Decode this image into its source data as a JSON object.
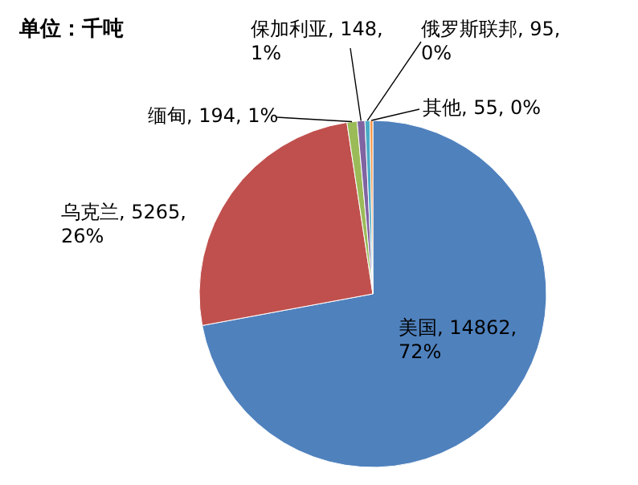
{
  "chart_data": {
    "type": "pie",
    "title": "单位：千吨",
    "categories": [
      "美国",
      "乌克兰",
      "缅甸",
      "保加利亚",
      "俄罗斯联邦",
      "其他"
    ],
    "values": [
      14862,
      5265,
      194,
      148,
      95,
      55
    ],
    "colors": [
      "#4f81bd",
      "#c0504d",
      "#9bbb59",
      "#8064a2",
      "#4bacc6",
      "#f79646"
    ],
    "value_labels": [
      "14862, 72%",
      "5265, 26%",
      "194, 1%",
      "148, 1%",
      "95, 0%",
      "55, 0%"
    ]
  }
}
